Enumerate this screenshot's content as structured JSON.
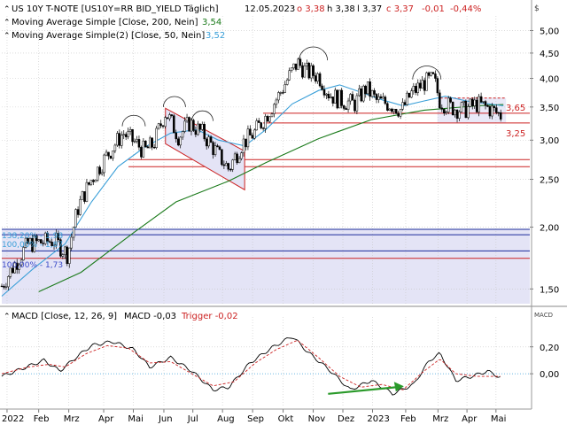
{
  "header": {
    "instrument": "US 10Y T-NOTE [US10Y=RR BID_YIELD Täglich]",
    "date": "12.05.2023",
    "open_label": "o",
    "open": "3,38",
    "high_label": "h",
    "high": "3,38",
    "low_label": "l",
    "low": "3,37",
    "close_label": "c",
    "close": "3,37",
    "change": "-0,01",
    "change_pct": "-0,44%",
    "currency_symbol": "$"
  },
  "legend": [
    {
      "label": "Moving Average Simple  [Close, 200, Nein]",
      "value": "3,54",
      "color": "#1a7a1a"
    },
    {
      "label": "Moving Average Simple(2)  [Close, 50, Nein]",
      "value": "3,52",
      "color": "#3a9fd8"
    }
  ],
  "macd_header": {
    "label": "MACD  [Close, 12, 26, 9]",
    "macd_label": "MACD",
    "macd_value": "-0,03",
    "trigger_label": "Trigger",
    "trigger_value": "-0,02",
    "axis_tag": "MACD"
  },
  "annotations": {
    "resistance_label": "3,65",
    "support_label": "3,25",
    "fib_labels": [
      "138,20% - 1,98",
      "100,00% - 1,87",
      "100,00% - 1,73"
    ]
  },
  "colors": {
    "candle": "#000000",
    "ma200": "#1a7a1a",
    "ma50": "#3a9fd8",
    "horizontal_red": "#cc2222",
    "horizontal_blue": "#1a2a9a",
    "zone_fill": "#e4e4f6",
    "trend_arrow": "#2a9a2a",
    "macd_line": "#000000",
    "trigger_line": "#cc2222",
    "zero_line": "#3a9fd8"
  },
  "chart_data": [
    {
      "type": "candlestick",
      "title": "US 10Y T-NOTE [US10Y=RR BID_YIELD Täglich]",
      "scale": "log",
      "yticks": [
        1.5,
        2.0,
        2.5,
        3.0,
        3.5,
        4.0,
        4.5,
        5.0
      ],
      "ytick_labels": [
        "1,50",
        "2,00",
        "2,50",
        "3,00",
        "3,50",
        "4,00",
        "4,50",
        "5,00"
      ],
      "ylim": [
        1.4,
        5.35
      ],
      "xlim": [
        0,
        1
      ],
      "xticks": [
        0.01,
        0.07,
        0.127,
        0.193,
        0.249,
        0.307,
        0.362,
        0.418,
        0.475,
        0.533,
        0.59,
        0.646,
        0.702,
        0.765,
        0.826,
        0.881,
        0.936
      ],
      "xtick_labels": [
        "2022",
        "Feb",
        "Mrz",
        "Apr",
        "Mai",
        "Jun",
        "Jul",
        "Aug",
        "Sep",
        "Okt",
        "Nov",
        "Dez",
        "2023",
        "Feb",
        "Mrz",
        "Apr",
        "Mai"
      ],
      "price_path": [
        [
          0,
          1.52
        ],
        [
          0.05,
          1.85
        ],
        [
          0.1,
          1.88
        ],
        [
          0.125,
          1.76
        ],
        [
          0.145,
          2.2
        ],
        [
          0.17,
          2.5
        ],
        [
          0.2,
          2.8
        ],
        [
          0.23,
          3.1
        ],
        [
          0.255,
          2.95
        ],
        [
          0.27,
          2.85
        ],
        [
          0.288,
          2.95
        ],
        [
          0.31,
          3.42
        ],
        [
          0.335,
          3.05
        ],
        [
          0.355,
          3.25
        ],
        [
          0.38,
          3.1
        ],
        [
          0.41,
          2.8
        ],
        [
          0.43,
          2.62
        ],
        [
          0.455,
          2.95
        ],
        [
          0.478,
          3.1
        ],
        [
          0.5,
          3.35
        ],
        [
          0.525,
          3.7
        ],
        [
          0.545,
          4.05
        ],
        [
          0.56,
          4.3
        ],
        [
          0.578,
          4.12
        ],
        [
          0.6,
          4.05
        ],
        [
          0.62,
          3.72
        ],
        [
          0.64,
          3.62
        ],
        [
          0.668,
          3.55
        ],
        [
          0.69,
          3.82
        ],
        [
          0.71,
          3.6
        ],
        [
          0.735,
          3.55
        ],
        [
          0.758,
          3.45
        ],
        [
          0.775,
          3.72
        ],
        [
          0.8,
          3.92
        ],
        [
          0.818,
          3.98
        ],
        [
          0.83,
          3.6
        ],
        [
          0.85,
          3.5
        ],
        [
          0.875,
          3.45
        ],
        [
          0.9,
          3.55
        ],
        [
          0.922,
          3.48
        ],
        [
          0.945,
          3.37
        ]
      ],
      "series": [
        {
          "name": "Moving Average Simple  [Close, 200, Nein]",
          "last": 3.54,
          "points": [
            [
              0.07,
              1.48
            ],
            [
              0.15,
              1.62
            ],
            [
              0.25,
              1.95
            ],
            [
              0.33,
              2.25
            ],
            [
              0.43,
              2.48
            ],
            [
              0.5,
              2.7
            ],
            [
              0.6,
              3.02
            ],
            [
              0.7,
              3.3
            ],
            [
              0.8,
              3.45
            ],
            [
              0.9,
              3.52
            ],
            [
              0.95,
              3.54
            ]
          ]
        },
        {
          "name": "Moving Average Simple(2)  [Close, 50, Nein]",
          "last": 3.52,
          "points": [
            [
              0,
              1.45
            ],
            [
              0.06,
              1.65
            ],
            [
              0.12,
              1.85
            ],
            [
              0.17,
              2.25
            ],
            [
              0.22,
              2.65
            ],
            [
              0.27,
              2.9
            ],
            [
              0.32,
              3.1
            ],
            [
              0.37,
              3.15
            ],
            [
              0.41,
              3.0
            ],
            [
              0.46,
              2.92
            ],
            [
              0.5,
              3.15
            ],
            [
              0.55,
              3.55
            ],
            [
              0.6,
              3.78
            ],
            [
              0.64,
              3.88
            ],
            [
              0.68,
              3.75
            ],
            [
              0.72,
              3.62
            ],
            [
              0.76,
              3.52
            ],
            [
              0.8,
              3.6
            ],
            [
              0.84,
              3.68
            ],
            [
              0.88,
              3.6
            ],
            [
              0.95,
              3.52
            ]
          ]
        }
      ],
      "hlines_red": [
        3.4,
        3.25,
        2.74,
        2.65,
        1.73
      ],
      "hlines_blue": [
        1.98,
        1.93,
        1.79
      ],
      "resistance": 3.65,
      "support": 3.25
    },
    {
      "type": "line",
      "title": "MACD  [Close, 12, 26, 9]",
      "yticks": [
        0.2,
        0.0
      ],
      "ytick_labels": [
        "0,20",
        "0,00"
      ],
      "ylim": [
        -0.25,
        0.37
      ],
      "series": [
        {
          "name": "MACD",
          "last": -0.03,
          "points": [
            [
              0,
              -0.02
            ],
            [
              0.04,
              0.04
            ],
            [
              0.08,
              0.1
            ],
            [
              0.11,
              0.02
            ],
            [
              0.14,
              0.12
            ],
            [
              0.17,
              0.21
            ],
            [
              0.21,
              0.24
            ],
            [
              0.25,
              0.18
            ],
            [
              0.28,
              0.05
            ],
            [
              0.32,
              0.12
            ],
            [
              0.36,
              0.02
            ],
            [
              0.4,
              -0.12
            ],
            [
              0.43,
              -0.1
            ],
            [
              0.47,
              0.08
            ],
            [
              0.51,
              0.19
            ],
            [
              0.55,
              0.28
            ],
            [
              0.58,
              0.16
            ],
            [
              0.62,
              0.03
            ],
            [
              0.66,
              -0.12
            ],
            [
              0.7,
              -0.05
            ],
            [
              0.74,
              -0.15
            ],
            [
              0.78,
              -0.08
            ],
            [
              0.81,
              0.1
            ],
            [
              0.83,
              0.15
            ],
            [
              0.86,
              -0.05
            ],
            [
              0.89,
              -0.02
            ],
            [
              0.92,
              0.02
            ],
            [
              0.945,
              -0.03
            ]
          ]
        },
        {
          "name": "Trigger",
          "last": -0.02,
          "points": [
            [
              0,
              0.0
            ],
            [
              0.05,
              0.05
            ],
            [
              0.09,
              0.07
            ],
            [
              0.12,
              0.05
            ],
            [
              0.16,
              0.15
            ],
            [
              0.2,
              0.21
            ],
            [
              0.24,
              0.19
            ],
            [
              0.28,
              0.08
            ],
            [
              0.32,
              0.09
            ],
            [
              0.36,
              0.0
            ],
            [
              0.4,
              -0.09
            ],
            [
              0.44,
              -0.06
            ],
            [
              0.48,
              0.08
            ],
            [
              0.52,
              0.18
            ],
            [
              0.56,
              0.25
            ],
            [
              0.6,
              0.12
            ],
            [
              0.64,
              -0.02
            ],
            [
              0.68,
              -0.1
            ],
            [
              0.72,
              -0.08
            ],
            [
              0.76,
              -0.12
            ],
            [
              0.8,
              0.02
            ],
            [
              0.83,
              0.11
            ],
            [
              0.86,
              0.0
            ],
            [
              0.9,
              -0.02
            ],
            [
              0.945,
              -0.02
            ]
          ]
        }
      ]
    }
  ]
}
